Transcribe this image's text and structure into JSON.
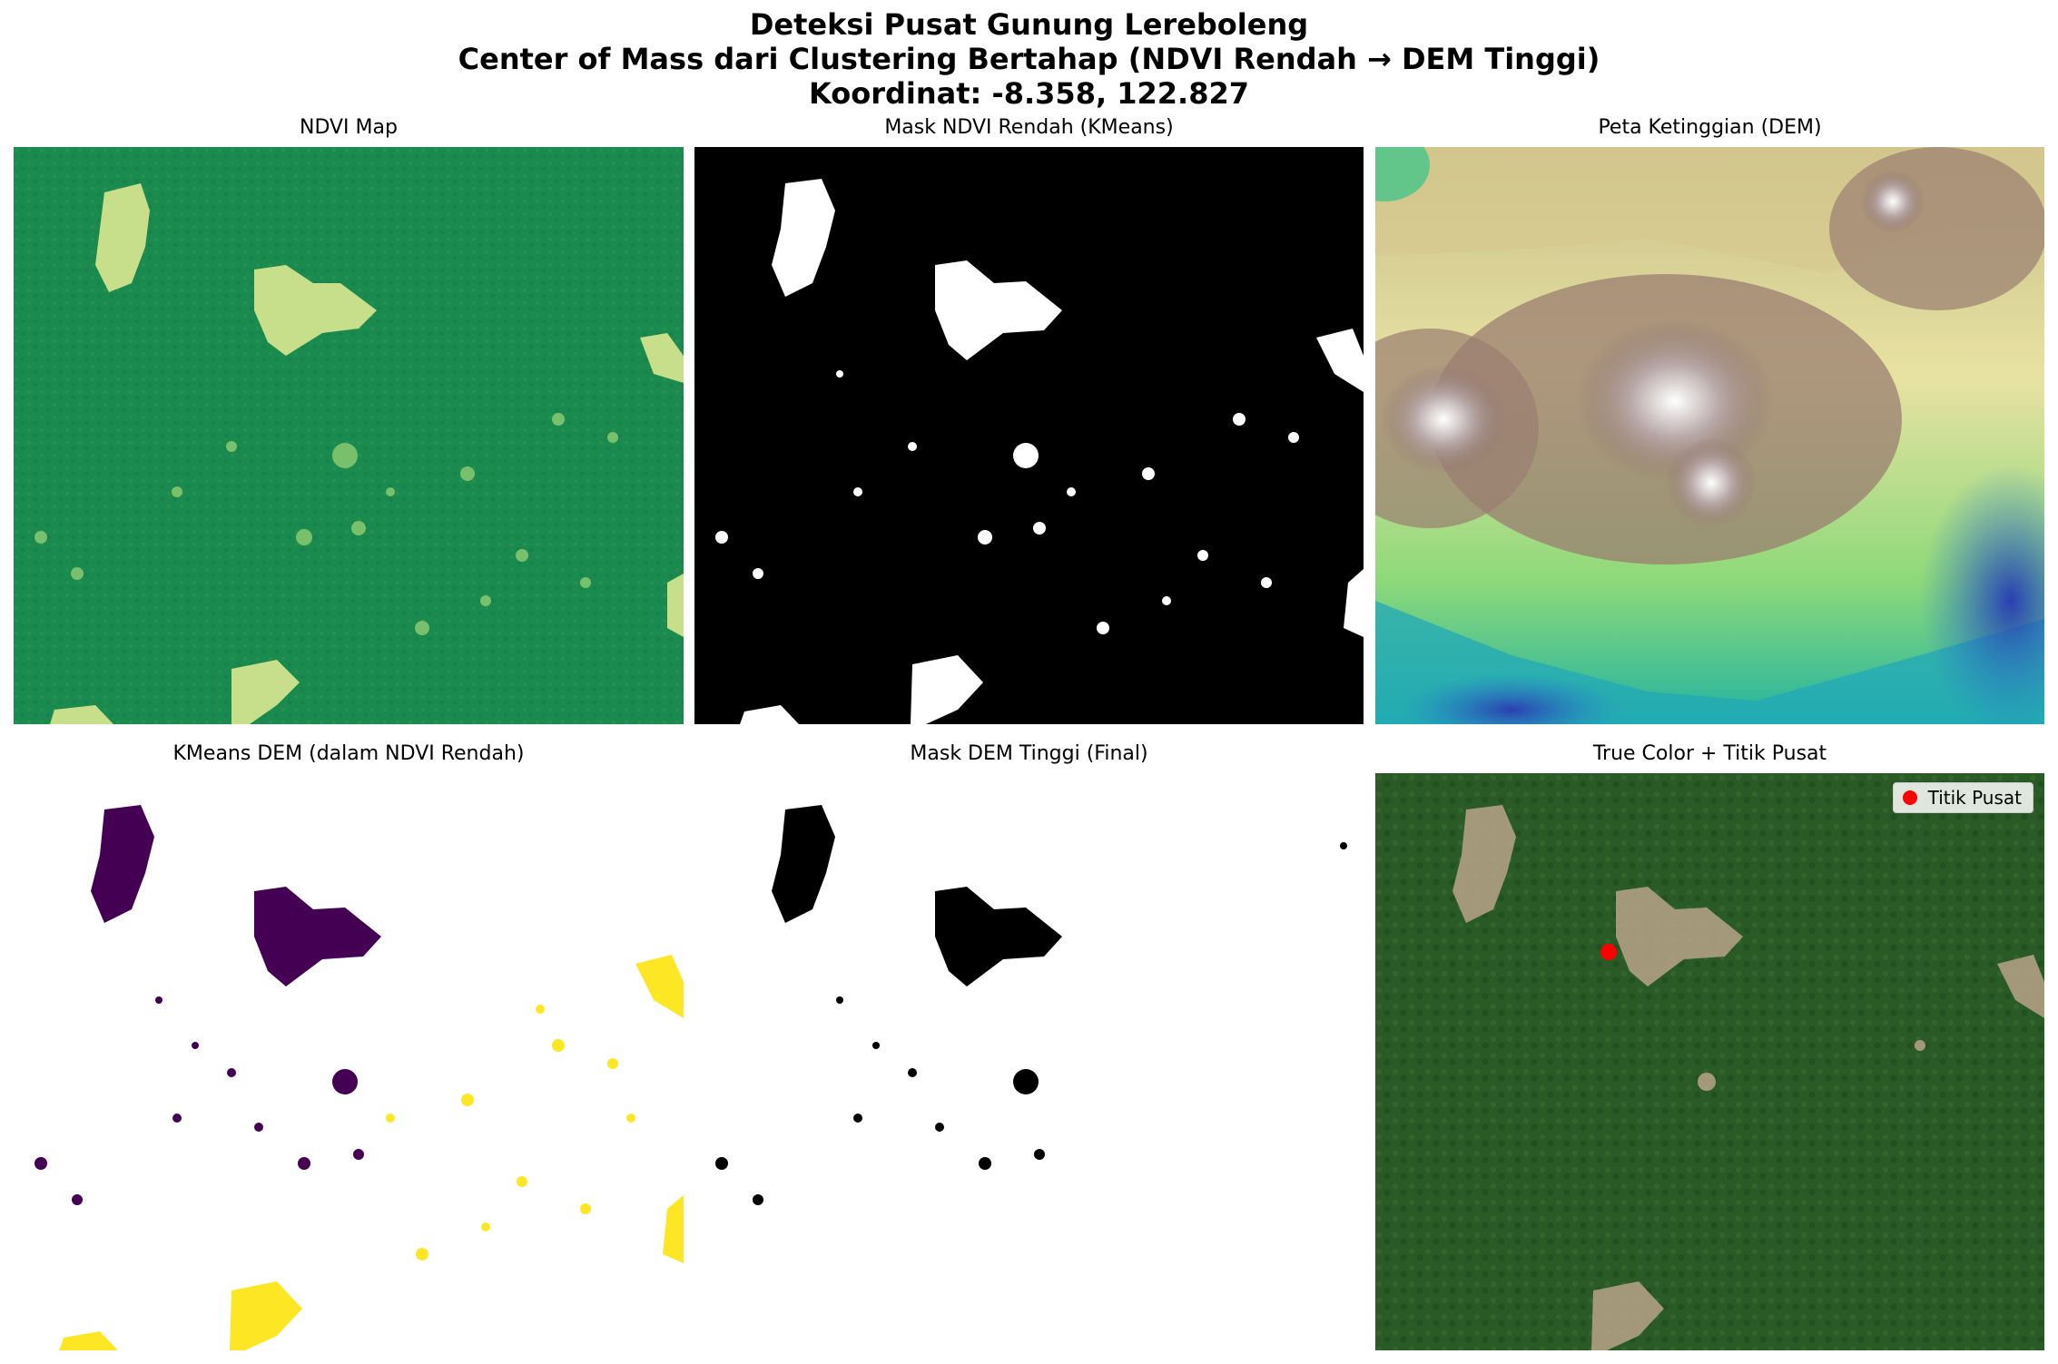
{
  "figure": {
    "title_line1": "Deteksi Pusat Gunung Lereboleng",
    "title_line2": "Center of Mass dari Clustering Bertahap (NDVI Rendah → DEM Tinggi)",
    "title_line3": "Koordinat: -8.358, 122.827"
  },
  "panels": [
    {
      "title": "NDVI Map"
    },
    {
      "title": "Mask NDVI Rendah (KMeans)"
    },
    {
      "title": "Peta Ketinggian (DEM)"
    },
    {
      "title": "KMeans DEM (dalam NDVI Rendah)"
    },
    {
      "title": "Mask DEM Tinggi (Final)"
    },
    {
      "title": "True Color + Titik Pusat"
    }
  ],
  "legend": {
    "label": "Titik Pusat",
    "marker_color": "#ff0000"
  },
  "colors": {
    "ndvi_base": "#1a8a4e",
    "ndvi_low": "#b8d98a",
    "mask_bg": "#000000",
    "mask_fg": "#ffffff",
    "dem_low": "#2a3fb0",
    "dem_mid": "#f1ee9a",
    "dem_high": "#8a6e6a",
    "dem_peak": "#ffffff",
    "kmeans_cluster_a": "#440154",
    "kmeans_cluster_b": "#fde725",
    "truecolor_forest": "#2a5a25",
    "center_point": "#ff0000"
  }
}
